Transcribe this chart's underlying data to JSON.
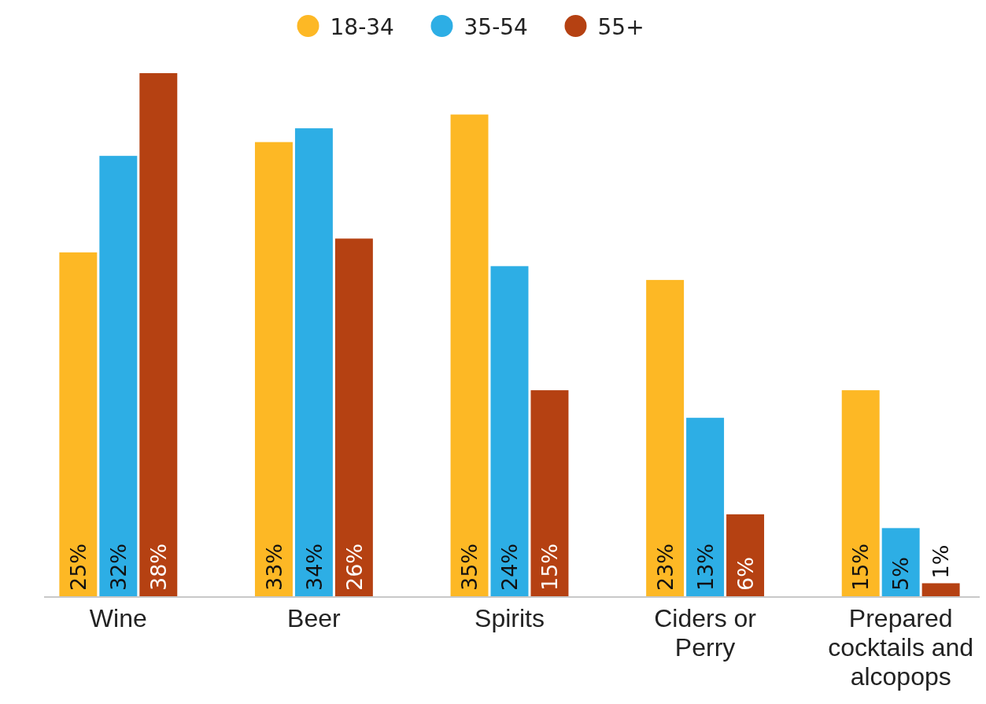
{
  "chart_data": {
    "type": "bar",
    "categories": [
      "Wine",
      "Beer",
      "Spirits",
      "Ciders or Perry",
      "Prepared cocktails and alcopops"
    ],
    "series": [
      {
        "name": "18-34",
        "color": "#fdb825",
        "values": [
          25,
          33,
          35,
          23,
          15
        ],
        "value_labels": [
          "25%",
          "33%",
          "35%",
          "23%",
          "15%"
        ]
      },
      {
        "name": "35-54",
        "color": "#2daee5",
        "values": [
          32,
          34,
          24,
          13,
          5
        ],
        "value_labels": [
          "32%",
          "34%",
          "24%",
          "13%",
          "5%"
        ]
      },
      {
        "name": "55+",
        "color": "#b54112",
        "values": [
          38,
          26,
          15,
          6,
          1
        ],
        "value_labels": [
          "38%",
          "26%",
          "15%",
          "6%",
          "1%"
        ]
      }
    ],
    "legend": "top"
  }
}
